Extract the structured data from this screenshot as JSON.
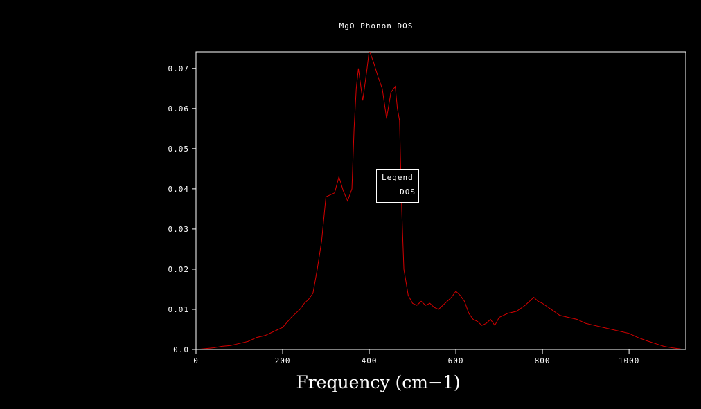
{
  "colors": {
    "background": "#000000",
    "axis": "#ffffff",
    "text": "#ffffff",
    "series_red": "#d40000"
  },
  "legend": {
    "title": "Legend",
    "entries": [
      {
        "label": "DOS",
        "color": "#d40000"
      }
    ]
  },
  "chart_data": {
    "type": "line",
    "title": "MgO Phonon DOS",
    "xlabel": "Frequency (cm−1)",
    "ylabel": "",
    "xlim": [
      0,
      1131
    ],
    "ylim": [
      0,
      0.0741
    ],
    "grid": false,
    "legend_position": "center",
    "x_ticks": [
      0,
      200,
      400,
      600,
      800,
      1000
    ],
    "x_tick_labels": [
      "0",
      "200",
      "400",
      "600",
      "800",
      "1000"
    ],
    "y_ticks": [
      0.0,
      0.01,
      0.02,
      0.03,
      0.04,
      0.05,
      0.06,
      0.07
    ],
    "y_tick_labels": [
      "0.0",
      "0.01",
      "0.02",
      "0.03",
      "0.04",
      "0.05",
      "0.06",
      "0.07"
    ],
    "series": [
      {
        "name": "DOS",
        "color": "#d40000",
        "points": [
          [
            0,
            0.0
          ],
          [
            20,
            0.0002
          ],
          [
            40,
            0.0004
          ],
          [
            60,
            0.0008
          ],
          [
            80,
            0.001
          ],
          [
            100,
            0.0015
          ],
          [
            120,
            0.002
          ],
          [
            140,
            0.003
          ],
          [
            160,
            0.0035
          ],
          [
            180,
            0.0045
          ],
          [
            200,
            0.0055
          ],
          [
            220,
            0.008
          ],
          [
            240,
            0.01
          ],
          [
            250,
            0.0115
          ],
          [
            260,
            0.0125
          ],
          [
            270,
            0.014
          ],
          [
            280,
            0.02
          ],
          [
            290,
            0.027
          ],
          [
            300,
            0.038
          ],
          [
            310,
            0.0385
          ],
          [
            320,
            0.039
          ],
          [
            330,
            0.043
          ],
          [
            340,
            0.0395
          ],
          [
            350,
            0.037
          ],
          [
            360,
            0.04
          ],
          [
            365,
            0.055
          ],
          [
            370,
            0.065
          ],
          [
            375,
            0.07
          ],
          [
            380,
            0.066
          ],
          [
            385,
            0.062
          ],
          [
            395,
            0.07
          ],
          [
            400,
            0.0745
          ],
          [
            405,
            0.073
          ],
          [
            410,
            0.0715
          ],
          [
            420,
            0.068
          ],
          [
            430,
            0.065
          ],
          [
            440,
            0.0575
          ],
          [
            450,
            0.064
          ],
          [
            460,
            0.0655
          ],
          [
            465,
            0.06
          ],
          [
            470,
            0.057
          ],
          [
            475,
            0.035
          ],
          [
            480,
            0.02
          ],
          [
            490,
            0.0135
          ],
          [
            500,
            0.0115
          ],
          [
            510,
            0.011
          ],
          [
            520,
            0.012
          ],
          [
            530,
            0.011
          ],
          [
            540,
            0.0115
          ],
          [
            550,
            0.0105
          ],
          [
            560,
            0.01
          ],
          [
            570,
            0.011
          ],
          [
            580,
            0.012
          ],
          [
            590,
            0.013
          ],
          [
            600,
            0.0145
          ],
          [
            610,
            0.0135
          ],
          [
            620,
            0.012
          ],
          [
            630,
            0.009
          ],
          [
            640,
            0.0075
          ],
          [
            650,
            0.007
          ],
          [
            660,
            0.006
          ],
          [
            670,
            0.0065
          ],
          [
            680,
            0.0075
          ],
          [
            690,
            0.006
          ],
          [
            700,
            0.008
          ],
          [
            720,
            0.009
          ],
          [
            740,
            0.0095
          ],
          [
            760,
            0.011
          ],
          [
            780,
            0.013
          ],
          [
            790,
            0.012
          ],
          [
            800,
            0.0115
          ],
          [
            820,
            0.01
          ],
          [
            840,
            0.0085
          ],
          [
            860,
            0.008
          ],
          [
            880,
            0.0075
          ],
          [
            900,
            0.0065
          ],
          [
            920,
            0.006
          ],
          [
            940,
            0.0055
          ],
          [
            960,
            0.005
          ],
          [
            980,
            0.0045
          ],
          [
            1000,
            0.004
          ],
          [
            1020,
            0.003
          ],
          [
            1040,
            0.0022
          ],
          [
            1060,
            0.0015
          ],
          [
            1080,
            0.0008
          ],
          [
            1100,
            0.0004
          ],
          [
            1120,
            0.0001
          ],
          [
            1131,
            0.0
          ]
        ]
      }
    ]
  }
}
